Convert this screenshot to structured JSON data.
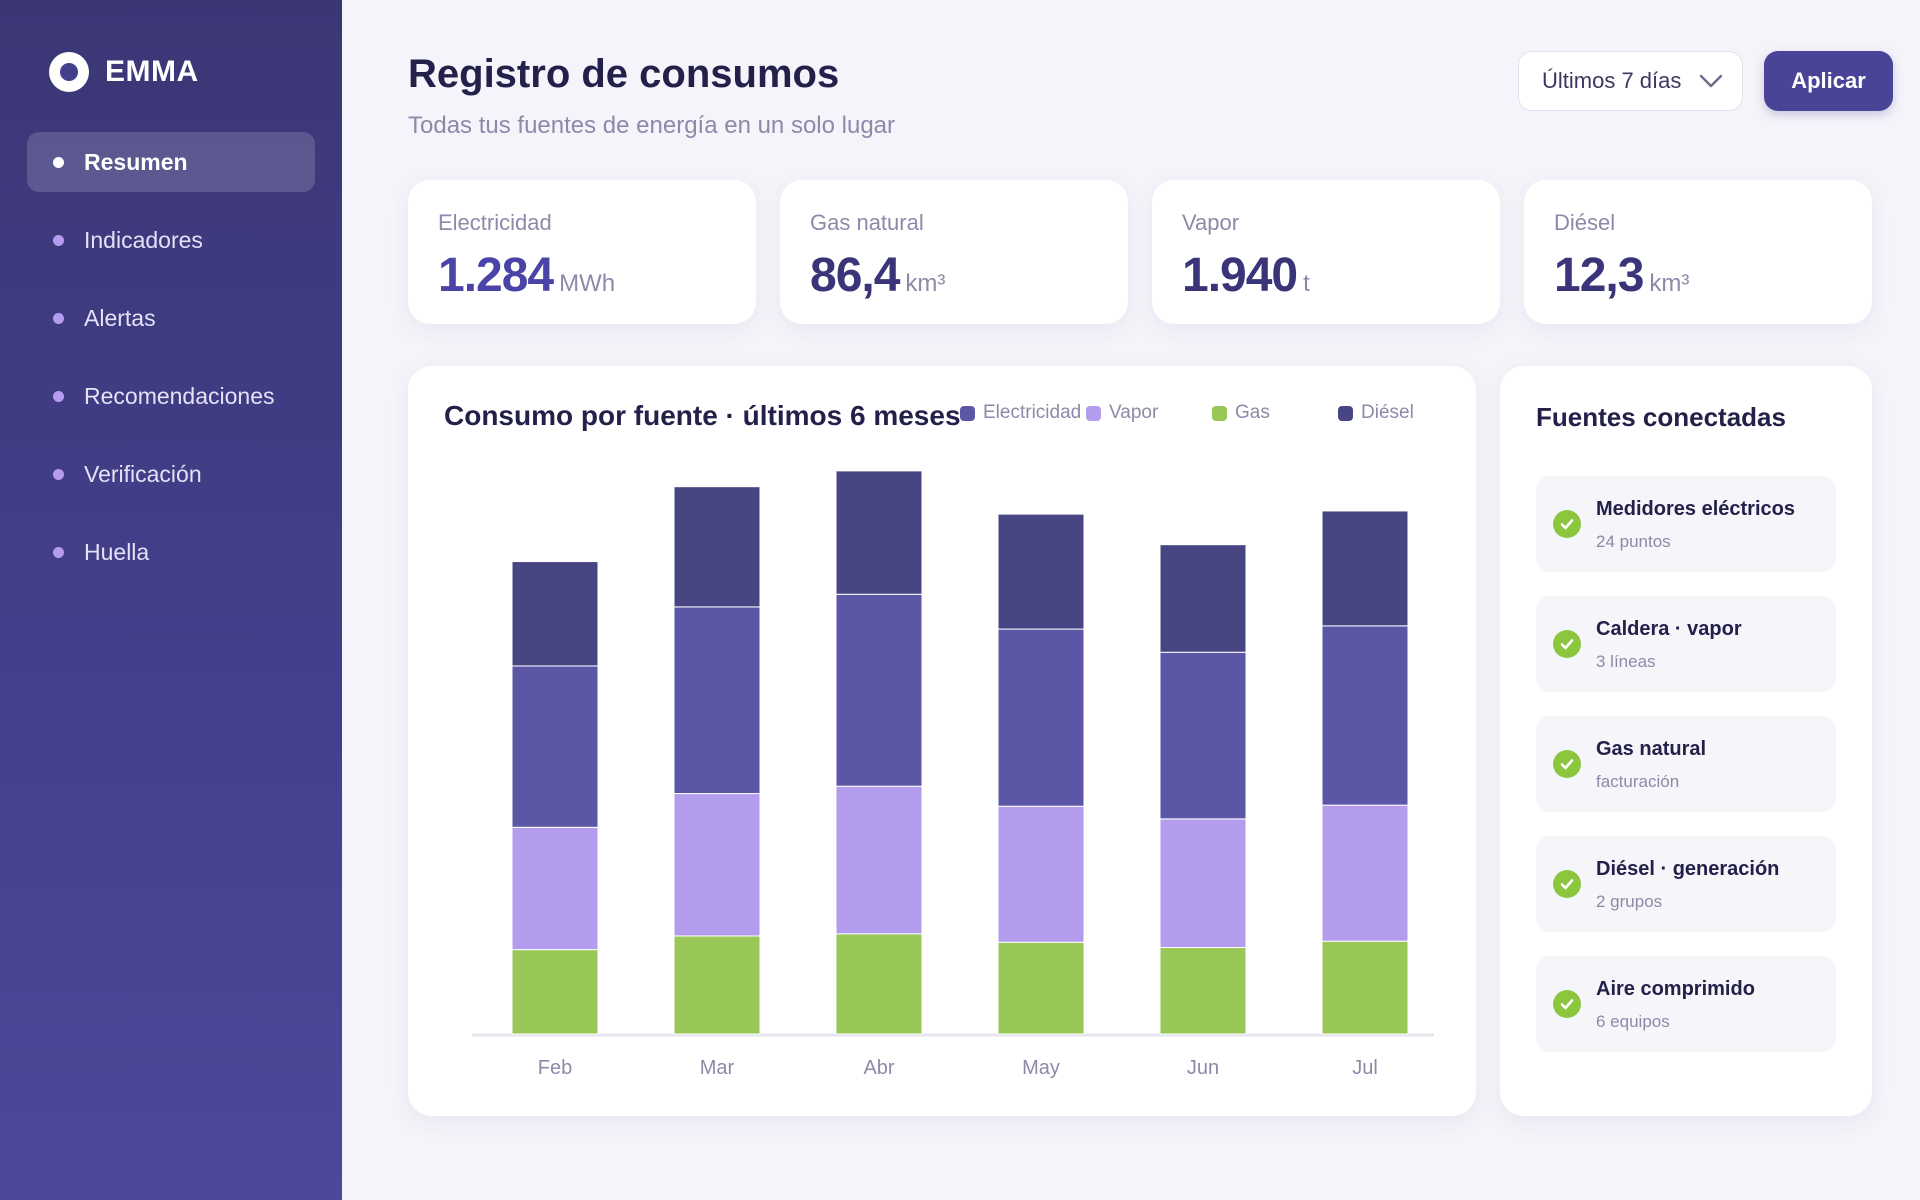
{
  "app": {
    "name": "EMMA"
  },
  "sidebar": {
    "items": [
      {
        "label": "Resumen",
        "active": true
      },
      {
        "label": "Indicadores",
        "active": false
      },
      {
        "label": "Alertas",
        "active": false
      },
      {
        "label": "Recomendaciones",
        "active": false
      },
      {
        "label": "Verificación",
        "active": false
      },
      {
        "label": "Huella",
        "active": false
      }
    ]
  },
  "header": {
    "title": "Registro de consumos",
    "subtitle": "Todas tus fuentes de energía en un solo lugar",
    "range_selected": "Últimos 7 días",
    "apply_label": "Aplicar"
  },
  "kpis": [
    {
      "label": "Electricidad",
      "value": "1.284",
      "unit": "MWh"
    },
    {
      "label": "Gas natural",
      "value": "86,4",
      "unit": "km³"
    },
    {
      "label": "Vapor",
      "value": "1.940",
      "unit": "t"
    },
    {
      "label": "Diésel",
      "value": "12,3",
      "unit": "km³"
    }
  ],
  "colors": {
    "accent": "#4a4499",
    "electricidad": "#5b57a6",
    "vapor": "#b39ced",
    "gas": "#98c657",
    "diesel": "#474582",
    "check": "#8cc63f"
  },
  "chart_data": {
    "type": "bar",
    "stacked": true,
    "title": "Consumo por fuente · últimos 6 meses",
    "categories": [
      "Feb",
      "Mar",
      "Abr",
      "May",
      "Jun",
      "Jul"
    ],
    "series": [
      {
        "name": "Gas",
        "color": "#98c657",
        "values": [
          80,
          93,
          95,
          87,
          82,
          88
        ]
      },
      {
        "name": "Vapor",
        "color": "#b39ced",
        "values": [
          116,
          135,
          140,
          129,
          122,
          129
        ]
      },
      {
        "name": "Electricidad",
        "color": "#5b57a6",
        "values": [
          153,
          177,
          182,
          168,
          158,
          170
        ]
      },
      {
        "name": "Diésel",
        "color": "#474582",
        "values": [
          99,
          114,
          117,
          109,
          102,
          109
        ]
      }
    ],
    "legend": [
      {
        "name": "Electricidad",
        "color": "#5b57a6"
      },
      {
        "name": "Vapor",
        "color": "#b39ced"
      },
      {
        "name": "Gas",
        "color": "#98c657"
      },
      {
        "name": "Diésel",
        "color": "#474582"
      }
    ],
    "ylim": [
      0,
      550
    ],
    "grid": false,
    "legend_position": "top-right"
  },
  "sources": {
    "title": "Fuentes conectadas",
    "items": [
      {
        "name": "Medidores eléctricos",
        "detail": "24 puntos"
      },
      {
        "name": "Caldera · vapor",
        "detail": "3 líneas"
      },
      {
        "name": "Gas natural",
        "detail": "facturación"
      },
      {
        "name": "Diésel · generación",
        "detail": "2 grupos"
      },
      {
        "name": "Aire comprimido",
        "detail": "6 equipos"
      }
    ]
  }
}
